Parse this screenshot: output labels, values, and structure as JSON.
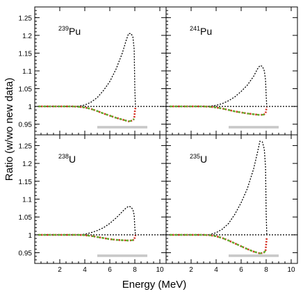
{
  "colors": {
    "baseline": "#000000",
    "variation": "#000000",
    "series_a": "#d62a1e",
    "series_b": "#5db22c",
    "band": "#c8c8c8"
  },
  "chart_data": {
    "type": "line",
    "layout": "2x2 grid, shared axes",
    "xlabel": "Energy (MeV)",
    "ylabel": "Ratio (w/wo new data)",
    "xlim": [
      0,
      10.5
    ],
    "ylim": [
      0.92,
      1.28
    ],
    "x_ticks": [
      2,
      4,
      6,
      8,
      10
    ],
    "y_ticks": [
      0.95,
      1,
      1.05,
      1.1,
      1.15,
      1.2,
      1.25
    ],
    "y_tick_labels": [
      "0.95",
      "1",
      "1.05",
      "1.1",
      "1.15",
      "1.2",
      "1.25"
    ],
    "grid": false,
    "panels": [
      {
        "id": "pu239",
        "mass": "239",
        "element": "Pu",
        "band": [
          5,
          9
        ],
        "upper_dotted": {
          "x": [
            0.3,
            1,
            2,
            3,
            3.5,
            4,
            4.5,
            5,
            5.5,
            6,
            6.5,
            7,
            7.3,
            7.5,
            7.7,
            7.85,
            7.95,
            8,
            8.05
          ],
          "y": [
            1,
            1,
            1,
            1,
            1.001,
            1.004,
            1.012,
            1.025,
            1.045,
            1.07,
            1.105,
            1.15,
            1.185,
            1.205,
            1.205,
            1.195,
            1.16,
            1.05,
            1
          ]
        },
        "series_a": {
          "x": [
            0.3,
            1,
            2,
            3,
            3.5,
            4,
            4.5,
            5,
            5.5,
            6,
            6.5,
            7,
            7.5,
            7.8,
            7.95,
            8,
            8.05
          ],
          "y": [
            1,
            1,
            1,
            1,
            0.999,
            0.997,
            0.993,
            0.987,
            0.98,
            0.974,
            0.968,
            0.963,
            0.958,
            0.96,
            0.965,
            0.985,
            0.996
          ]
        },
        "series_b": {
          "x": [
            0.3,
            1,
            2,
            3,
            3.5,
            4,
            4.5,
            5,
            5.5,
            6,
            6.5,
            7,
            7.5,
            7.8,
            7.95
          ],
          "y": [
            1,
            1,
            1,
            1,
            0.999,
            0.997,
            0.993,
            0.987,
            0.98,
            0.974,
            0.968,
            0.963,
            0.958,
            0.96,
            0.965
          ]
        }
      },
      {
        "id": "pu241",
        "mass": "241",
        "element": "Pu",
        "band": [
          5,
          9
        ],
        "upper_dotted": {
          "x": [
            0.3,
            1,
            2,
            3,
            3.5,
            4,
            4.5,
            5,
            5.5,
            6,
            6.5,
            7,
            7.3,
            7.5,
            7.7,
            7.85,
            7.95,
            8,
            8.05
          ],
          "y": [
            1,
            1,
            1,
            1,
            1.001,
            1.003,
            1.008,
            1.016,
            1.027,
            1.042,
            1.06,
            1.085,
            1.105,
            1.115,
            1.113,
            1.1,
            1.075,
            1.03,
            1
          ]
        },
        "series_a": {
          "x": [
            0.3,
            1,
            2,
            3,
            3.5,
            4,
            4.5,
            5,
            5.5,
            6,
            6.5,
            7,
            7.5,
            7.8,
            7.95,
            8,
            8.05
          ],
          "y": [
            1,
            1,
            1,
            1,
            0.999,
            0.997,
            0.994,
            0.99,
            0.986,
            0.983,
            0.98,
            0.978,
            0.976,
            0.977,
            0.98,
            0.99,
            0.998
          ]
        },
        "series_b": {
          "x": [
            0.3,
            1,
            2,
            3,
            3.5,
            4,
            4.5,
            5,
            5.5,
            6,
            6.5,
            7,
            7.5,
            7.8,
            7.95
          ],
          "y": [
            1,
            1,
            1,
            1,
            0.999,
            0.997,
            0.994,
            0.99,
            0.986,
            0.983,
            0.98,
            0.978,
            0.976,
            0.977,
            0.98
          ]
        }
      },
      {
        "id": "u238",
        "mass": "238",
        "element": "U",
        "band": [
          5,
          9
        ],
        "upper_dotted": {
          "x": [
            0.3,
            1,
            2,
            3,
            3.5,
            4,
            4.5,
            5,
            5.5,
            6,
            6.5,
            7,
            7.3,
            7.5,
            7.7,
            7.85,
            7.95,
            8,
            8.05
          ],
          "y": [
            1,
            1,
            1,
            1,
            1,
            1.002,
            1.006,
            1.012,
            1.02,
            1.032,
            1.047,
            1.065,
            1.075,
            1.08,
            1.078,
            1.07,
            1.055,
            1.02,
            1
          ]
        },
        "series_a": {
          "x": [
            0.3,
            1,
            2,
            3,
            3.5,
            4,
            4.5,
            5,
            5.5,
            6,
            6.5,
            7,
            7.5,
            7.8,
            7.95,
            8,
            8.05
          ],
          "y": [
            1,
            1,
            1,
            1,
            1,
            0.999,
            0.997,
            0.994,
            0.991,
            0.988,
            0.986,
            0.985,
            0.984,
            0.985,
            0.986,
            0.993,
            0.999
          ]
        },
        "series_b": {
          "x": [
            0.3,
            1,
            2,
            3,
            3.5,
            4,
            4.5,
            5,
            5.5,
            6,
            6.5,
            7,
            7.5,
            7.8,
            7.95
          ],
          "y": [
            1,
            1,
            1,
            1,
            1,
            0.999,
            0.997,
            0.994,
            0.991,
            0.988,
            0.986,
            0.985,
            0.984,
            0.985,
            0.986
          ]
        }
      },
      {
        "id": "u235",
        "mass": "235",
        "element": "U",
        "band": [
          5,
          9
        ],
        "upper_dotted": {
          "x": [
            0.3,
            1,
            2,
            3,
            3.5,
            4,
            4.5,
            5,
            5.5,
            6,
            6.5,
            7,
            7.3,
            7.5,
            7.7,
            7.85,
            7.95,
            8,
            8.05
          ],
          "y": [
            1,
            1,
            1,
            1,
            1.001,
            1.006,
            1.016,
            1.032,
            1.058,
            1.09,
            1.13,
            1.185,
            1.23,
            1.262,
            1.26,
            1.24,
            1.19,
            1.06,
            1
          ]
        },
        "series_a": {
          "x": [
            0.3,
            1,
            2,
            3,
            3.5,
            4,
            4.5,
            5,
            5.5,
            6,
            6.5,
            7,
            7.5,
            7.8,
            7.95,
            8,
            8.05
          ],
          "y": [
            1,
            1,
            1,
            1,
            0.999,
            0.996,
            0.991,
            0.984,
            0.976,
            0.968,
            0.96,
            0.953,
            0.948,
            0.95,
            0.955,
            0.975,
            0.994
          ]
        },
        "series_b": {
          "x": [
            0.3,
            1,
            2,
            3,
            3.5,
            4,
            4.5,
            5,
            5.5,
            6,
            6.5,
            7,
            7.5,
            7.8,
            7.95
          ],
          "y": [
            1,
            1,
            1,
            1,
            0.999,
            0.996,
            0.991,
            0.984,
            0.976,
            0.968,
            0.96,
            0.953,
            0.948,
            0.95,
            0.955
          ]
        }
      }
    ]
  }
}
